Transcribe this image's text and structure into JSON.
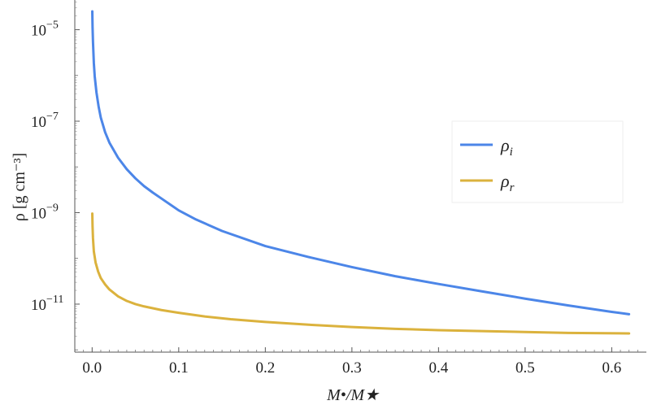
{
  "chart_data": {
    "type": "line",
    "xlabel": "M•/M★",
    "ylabel": "ρ [g cm⁻³]",
    "yscale": "log",
    "xlim": [
      -0.02,
      0.64
    ],
    "ylim_log10": [
      -12.05,
      -4.35
    ],
    "x_ticks": [
      "0.0",
      "0.1",
      "0.2",
      "0.3",
      "0.4",
      "0.5",
      "0.6"
    ],
    "x_tick_values": [
      0.0,
      0.1,
      0.2,
      0.3,
      0.4,
      0.5,
      0.6
    ],
    "y_ticks": [
      {
        "base": "10",
        "exp": "−5",
        "value": -5
      },
      {
        "base": "10",
        "exp": "−7",
        "value": -7
      },
      {
        "base": "10",
        "exp": "−9",
        "value": -9
      },
      {
        "base": "10",
        "exp": "−11",
        "value": -11
      }
    ],
    "grid": false,
    "legend_position": "right",
    "series": [
      {
        "name": "ρ",
        "subscript": "i",
        "color": "#4c86e8",
        "x": [
          0.0002,
          0.0005,
          0.001,
          0.002,
          0.003,
          0.005,
          0.0075,
          0.01,
          0.015,
          0.02,
          0.03,
          0.04,
          0.05,
          0.06,
          0.07,
          0.08,
          0.1,
          0.12,
          0.15,
          0.2,
          0.25,
          0.3,
          0.35,
          0.4,
          0.45,
          0.5,
          0.55,
          0.6,
          0.62
        ],
        "log10_y": [
          -4.6,
          -4.94,
          -5.27,
          -5.73,
          -6.02,
          -6.37,
          -6.68,
          -6.92,
          -7.24,
          -7.47,
          -7.8,
          -8.05,
          -8.25,
          -8.42,
          -8.56,
          -8.69,
          -8.95,
          -9.15,
          -9.4,
          -9.73,
          -9.97,
          -10.19,
          -10.39,
          -10.56,
          -10.72,
          -10.88,
          -11.03,
          -11.17,
          -11.22
        ]
      },
      {
        "name": "ρ",
        "subscript": "r",
        "color": "#dbb23d",
        "x": [
          0.0002,
          0.0005,
          0.001,
          0.002,
          0.004,
          0.007,
          0.01,
          0.015,
          0.02,
          0.03,
          0.04,
          0.05,
          0.06,
          0.08,
          0.1,
          0.13,
          0.16,
          0.2,
          0.25,
          0.3,
          0.35,
          0.4,
          0.45,
          0.5,
          0.55,
          0.62
        ],
        "log10_y": [
          -9.02,
          -9.3,
          -9.56,
          -9.85,
          -10.09,
          -10.29,
          -10.43,
          -10.57,
          -10.68,
          -10.83,
          -10.93,
          -11.0,
          -11.05,
          -11.13,
          -11.19,
          -11.27,
          -11.33,
          -11.39,
          -11.45,
          -11.5,
          -11.54,
          -11.57,
          -11.59,
          -11.61,
          -11.63,
          -11.64
        ]
      }
    ]
  }
}
